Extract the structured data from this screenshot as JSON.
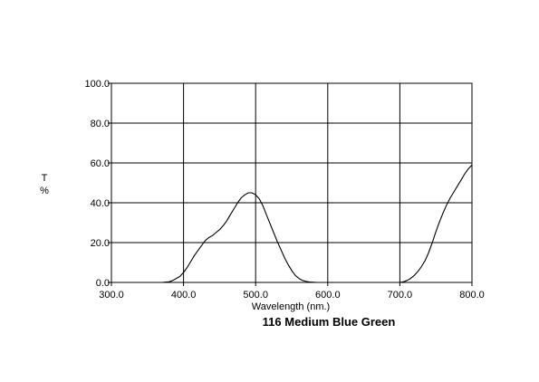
{
  "chart_data": {
    "type": "line",
    "title": "116 Medium Blue Green",
    "xlabel": "Wavelength (nm.)",
    "ylabel_lines": [
      "T",
      "%"
    ],
    "xlim": [
      300,
      800
    ],
    "ylim": [
      0,
      100
    ],
    "x_ticks": [
      "300.0",
      "400.0",
      "500.0",
      "600.0",
      "700.0",
      "800.0"
    ],
    "y_ticks": [
      "0.0",
      "20.0",
      "40.0",
      "60.0",
      "80.0",
      "100.0"
    ],
    "grid": true,
    "line_color": "#000000",
    "series": [
      {
        "x": [
          370,
          380,
          385,
          390,
          395,
          400,
          405,
          410,
          415,
          420,
          425,
          430,
          435,
          440,
          445,
          450,
          455,
          460,
          465,
          470,
          475,
          480,
          485,
          490,
          495,
          500,
          505,
          510,
          515,
          520,
          525,
          530,
          535,
          540,
          545,
          550,
          555,
          560,
          565,
          570,
          575,
          580,
          585,
          590,
          595,
          600
        ],
        "y": [
          0,
          0.3,
          1,
          2,
          3,
          5,
          7.5,
          10.5,
          13.5,
          16,
          18.5,
          21,
          22.5,
          23.5,
          25,
          26.5,
          28.5,
          31,
          34,
          37,
          40,
          42.5,
          44,
          45,
          45,
          44,
          42,
          38.5,
          34,
          29.5,
          25,
          20.5,
          16.5,
          12.5,
          9,
          6,
          3.5,
          2,
          1,
          0.5,
          0.2,
          0.1,
          0,
          0,
          0,
          0
        ]
      },
      {
        "x": [
          690,
          700,
          705,
          710,
          715,
          720,
          725,
          730,
          735,
          740,
          745,
          750,
          755,
          760,
          765,
          770,
          775,
          780,
          785,
          790,
          795,
          800
        ],
        "y": [
          0,
          0,
          0.3,
          1,
          2,
          3.5,
          5.5,
          8,
          11,
          15,
          20,
          25.5,
          30.5,
          35,
          39,
          42.5,
          45.5,
          48.5,
          51.5,
          54.5,
          57,
          59
        ]
      }
    ]
  }
}
